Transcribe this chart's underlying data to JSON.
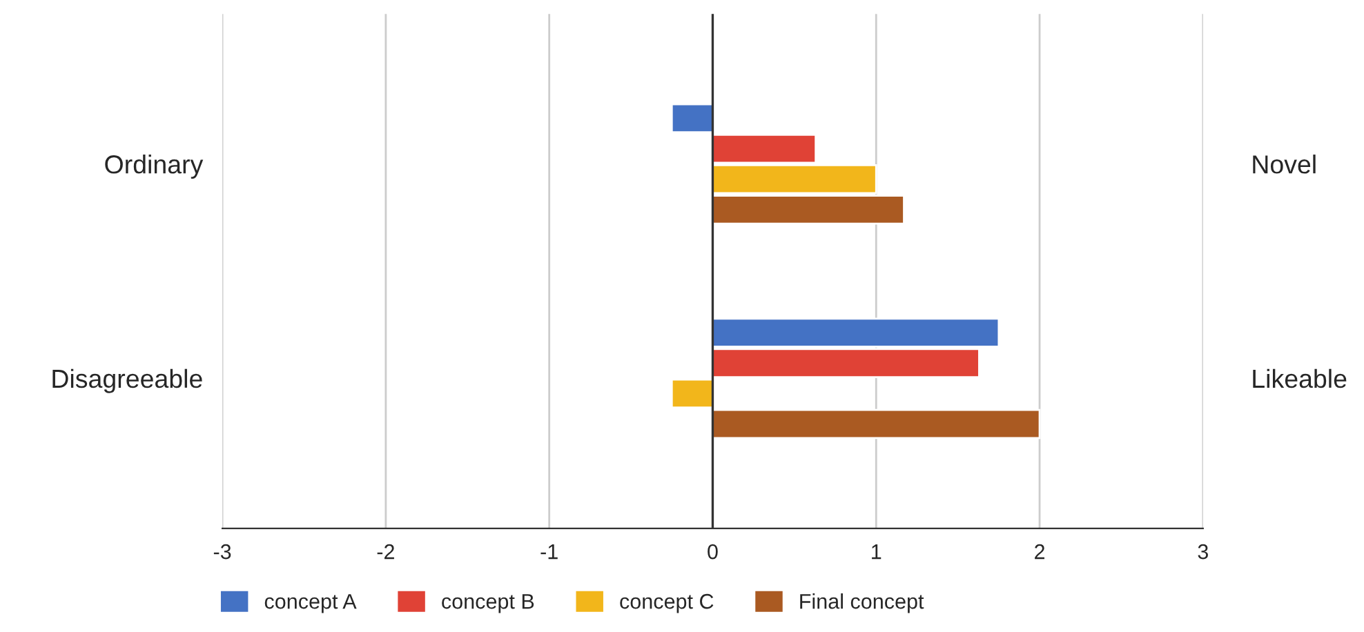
{
  "chart_data": {
    "type": "bar",
    "orientation": "horizontal",
    "categories": [
      "Ordinary",
      "Disagreeable"
    ],
    "y2_categories": [
      "Novel",
      "Likeable"
    ],
    "series": [
      {
        "name": "concept A",
        "color": "#4472c4",
        "values": [
          -0.25,
          1.75
        ]
      },
      {
        "name": "concept B",
        "color": "#e04236",
        "values": [
          0.63,
          1.63
        ]
      },
      {
        "name": "concept C",
        "color": "#f2b61b",
        "values": [
          1.0,
          -0.25
        ]
      },
      {
        "name": "Final concept",
        "color": "#aa5a22",
        "values": [
          1.17,
          2.0
        ]
      }
    ],
    "xlim": [
      -3,
      3
    ],
    "xticks": [
      -3,
      -2,
      -1,
      0,
      1,
      2,
      3
    ],
    "grid": "x",
    "legend": "bottom"
  }
}
